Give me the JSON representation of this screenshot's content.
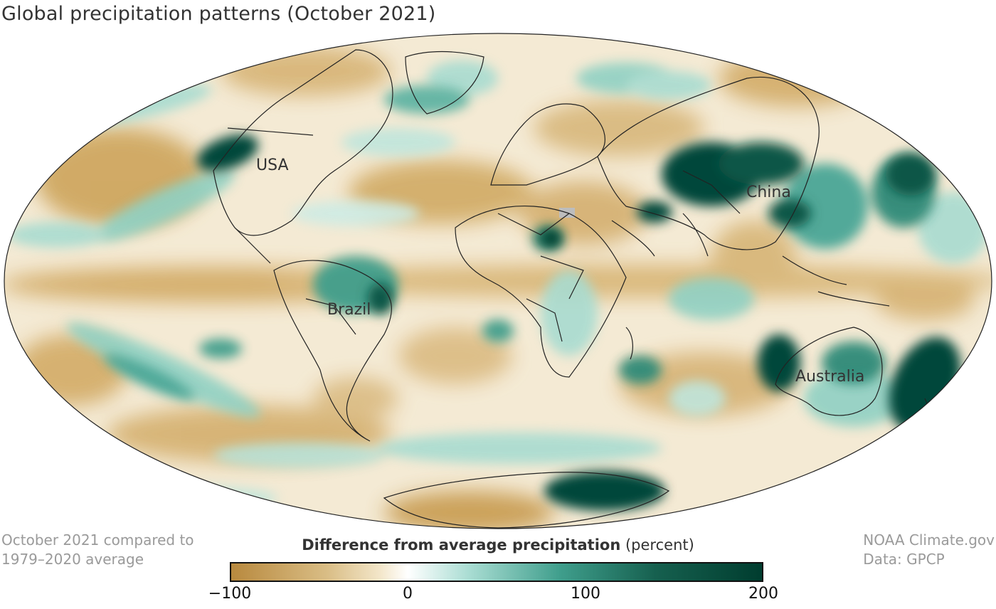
{
  "title": "Global precipitation patterns (October 2021)",
  "region_labels": {
    "usa": "USA",
    "brazil": "Brazil",
    "china": "China",
    "australia": "Australia"
  },
  "note_left": {
    "line1": "October 2021 compared to",
    "line2": "1979–2020 average"
  },
  "note_right": {
    "line1": "NOAA Climate.gov",
    "line2": "Data: GPCP"
  },
  "legend": {
    "title_bold": "Difference from average precipitation",
    "title_unit": "(percent)",
    "ticks": [
      "−100",
      "0",
      "100",
      "200"
    ],
    "range": [
      -100,
      200
    ],
    "colors": {
      "dry_dark": "#b8893e",
      "dry_mid": "#d9bd85",
      "neutral": "#ffffff",
      "wet_light": "#a8dcd2",
      "wet_mid": "#3f9e8c",
      "wet_dark": "#003d2f"
    }
  }
}
